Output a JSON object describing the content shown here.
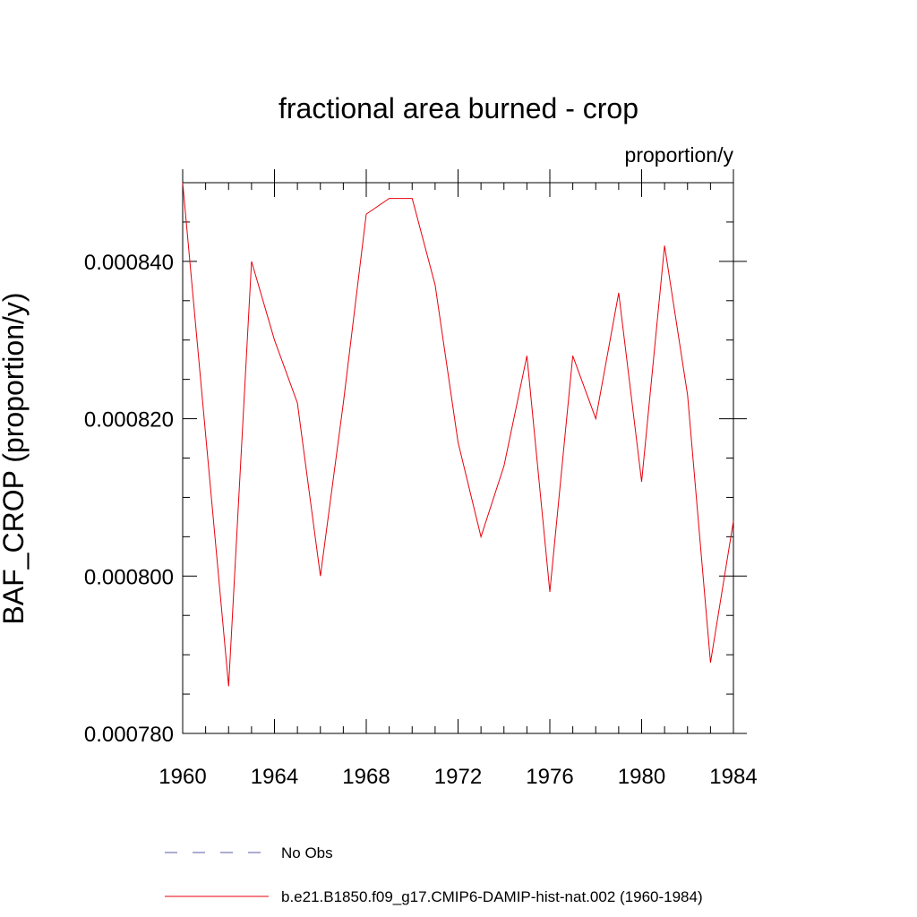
{
  "chart_data": {
    "type": "line",
    "title": "fractional area burned - crop",
    "units_label": "proportion/y",
    "ylabel": "BAF_CROP  (proportion/y)",
    "xlabel": "",
    "xlim": [
      1960,
      1984
    ],
    "ylim": [
      0.00078,
      0.00085
    ],
    "x_ticks": [
      1960,
      1964,
      1968,
      1972,
      1976,
      1980,
      1984
    ],
    "x_tick_labels": [
      "1960",
      "1964",
      "1968",
      "1972",
      "1976",
      "1980",
      "1984"
    ],
    "y_ticks": [
      0.00078,
      0.0008,
      0.00082,
      0.00084
    ],
    "y_tick_labels": [
      "0.000780",
      "0.000800",
      "0.000820",
      "0.000840"
    ],
    "y_minor_step": 5e-06,
    "grid": false,
    "legend_position": "bottom",
    "legend": [
      {
        "label": "No Obs",
        "color": "#5a5aa8",
        "dash": true
      },
      {
        "label": "b.e21.B1850.f09_g17.CMIP6-DAMIP-hist-nat.002 (1960-1984)",
        "color": "#e8000b",
        "dash": false
      }
    ],
    "series": [
      {
        "name": "b.e21.B1850.f09_g17.CMIP6-DAMIP-hist-nat.002 (1960-1984)",
        "color": "#e8000b",
        "x": [
          1960,
          1961,
          1962,
          1963,
          1964,
          1965,
          1966,
          1967,
          1968,
          1969,
          1970,
          1971,
          1972,
          1973,
          1974,
          1975,
          1976,
          1977,
          1978,
          1979,
          1980,
          1981,
          1982,
          1983,
          1984
        ],
        "values": [
          0.00085,
          0.000818,
          0.000786,
          0.00084,
          0.00083,
          0.000822,
          0.0008,
          0.000822,
          0.000846,
          0.000848,
          0.000848,
          0.000837,
          0.000817,
          0.000805,
          0.000814,
          0.000828,
          0.000798,
          0.000828,
          0.00082,
          0.000836,
          0.000812,
          0.000842,
          0.000823,
          0.000789,
          0.000807
        ]
      }
    ]
  }
}
